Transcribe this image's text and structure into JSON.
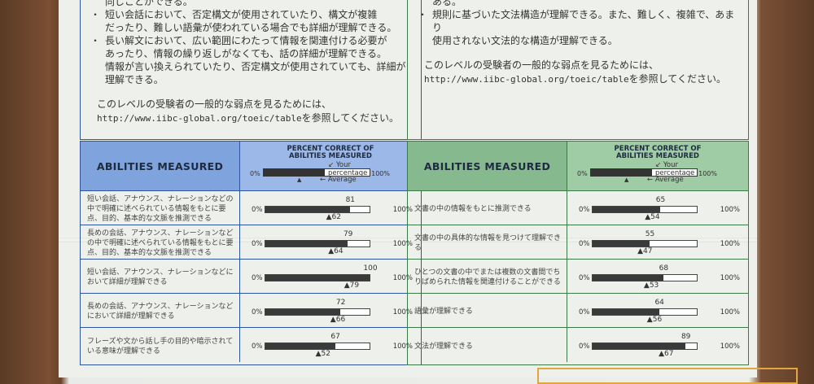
{
  "left": {
    "top_text": {
      "line0": "同じことができる。",
      "bullets": [
        {
          "lines": [
            "短い会話において、否定構文が使用されていたり、構文が複雑",
            "だったり、難しい語彙が使われている場合でも詳細が理解できる。"
          ]
        },
        {
          "lines": [
            "長い解文において、広い範囲にわたって情報を関連付ける必要が",
            "あったり、情報の繰り返しがなくても、話の詳細が理解できる。",
            "情報が言い換えられていたり、否定構文が使用されていても、詳細が",
            "理解できる。"
          ]
        }
      ],
      "note_line1": "このレベルの受験者の一般的な弱点を見るためには、",
      "note_url": "http://www.iibc-global.org/toeic/table",
      "note_tail": "を参照してください。"
    },
    "header": {
      "abilities": "ABILITIES MEASURED",
      "pc_line1": "PERCENT CORRECT OF",
      "pc_line2": "ABILITIES MEASURED",
      "your_percentage": "Your percentage",
      "average": "Average",
      "zero": "0%",
      "hundred": "100%"
    },
    "rows": [
      {
        "desc": "短い会話、アナウンス、ナレーションなどの中で明確に述べられている情報をもとに要点、目的、基本的な文脈を推測できる",
        "value": 81,
        "average": 62
      },
      {
        "desc": "長めの会話、アナウンス、ナレーションなどの中で明確に述べられている情報をもとに要点、目的、基本的な文脈を推測できる",
        "value": 79,
        "average": 64
      },
      {
        "desc": "短い会話、アナウンス、ナレーションなどにおいて詳細が理解できる",
        "value": 100,
        "average": 79
      },
      {
        "desc": "長めの会話、アナウンス、ナレーションなどにおいて詳細が理解できる",
        "value": 72,
        "average": 66
      },
      {
        "desc": "フレーズや文から話し手の目的や暗示されている意味が理解できる",
        "value": 67,
        "average": 52
      }
    ]
  },
  "right": {
    "top_text": {
      "line0": "ある。",
      "bullets": [
        {
          "lines": [
            "規則に基づいた文法構造が理解できる。また、難しく、複雑で、あまり",
            "使用されない文法的な構造が理解できる。"
          ]
        }
      ],
      "note_line1": "このレベルの受験者の一般的な弱点を見るためには、",
      "note_url": "http://www.iibc-global.org/toeic/table",
      "note_tail": "を参照してください。"
    },
    "header": {
      "abilities": "ABILITIES MEASURED",
      "pc_line1": "PERCENT CORRECT OF",
      "pc_line2": "ABILITIES MEASURED",
      "your_percentage": "Your percentage",
      "average": "Average",
      "zero": "0%",
      "hundred": "100%"
    },
    "rows": [
      {
        "desc": "文書の中の情報をもとに推測できる",
        "value": 65,
        "average": 54
      },
      {
        "desc": "文書の中の具体的な情報を見つけて理解できる",
        "value": 55,
        "average": 47
      },
      {
        "desc": "ひとつの文書の中でまたは複数の文書間でちりばめられた情報を関連付けることができる",
        "value": 68,
        "average": 53
      },
      {
        "desc": "語彙が理解できる",
        "value": 64,
        "average": 56
      },
      {
        "desc": "文法が理解できる",
        "value": 89,
        "average": 67
      }
    ]
  }
}
